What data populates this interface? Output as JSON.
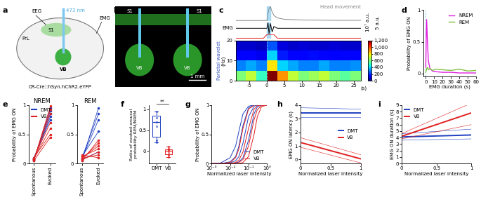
{
  "panel_labels": [
    "a",
    "b",
    "c",
    "d",
    "e",
    "f",
    "g",
    "h",
    "i"
  ],
  "schematic": {
    "prl": "PrL",
    "s1": "S1",
    "eeg": "EEG",
    "emg": "EMG",
    "laser": "473 nm",
    "vb": "VB",
    "construct": "CR-Cre::hSyn.hChR2.eYFP"
  },
  "histology": {
    "s1_left": "S1",
    "s1_right": "S1",
    "vb_left": "VB",
    "vb_right": "VB",
    "scale": "1 mm"
  },
  "chart_data": [
    {
      "type": "line",
      "stimulus": [
        0,
        1
      ],
      "xlim": [
        -9,
        27
      ],
      "scale_labels": [
        "10⁷ a.u.",
        "5 a.u."
      ],
      "x": [
        -9,
        -6,
        -3,
        -1,
        0,
        0.3,
        0.6,
        1,
        1.5,
        2,
        3,
        5,
        10,
        15,
        20,
        25,
        27
      ],
      "series": [
        {
          "name": "Head movement",
          "color": "#888888",
          "values": [
            0.05,
            0.05,
            0.06,
            0.05,
            0.1,
            2,
            3.5,
            4,
            2.5,
            1.5,
            0.8,
            0.4,
            0.2,
            0.15,
            0.1,
            0.1,
            0.1
          ]
        },
        {
          "name": "EMG",
          "color": "#000000",
          "values": [
            0,
            0,
            0,
            0,
            0,
            3,
            -3,
            2.5,
            -2,
            1,
            0,
            0,
            0,
            0,
            0,
            0,
            0
          ]
        },
        {
          "color": "#e02020",
          "values": [
            0,
            0,
            0,
            0,
            1,
            1,
            1,
            1,
            1,
            1,
            0,
            0,
            0,
            0,
            0,
            0,
            0
          ]
        }
      ]
    },
    {
      "type": "heatmap",
      "side_label": "Parietal wavelet",
      "ylabel": "(Hz)",
      "xlabel": "(s)",
      "x_edges": [
        -9,
        -6,
        -3,
        0,
        3,
        6,
        9,
        12,
        15,
        18,
        21,
        24,
        27
      ],
      "y_edges": [
        0,
        5,
        10,
        15,
        20
      ],
      "cells": [
        [
          600,
          700,
          500,
          1200,
          900,
          700,
          600,
          650,
          700,
          600,
          550,
          600
        ],
        [
          300,
          350,
          300,
          800,
          400,
          350,
          300,
          300,
          350,
          300,
          300,
          320
        ],
        [
          150,
          150,
          120,
          400,
          180,
          150,
          150,
          160,
          150,
          140,
          150,
          150
        ],
        [
          80,
          80,
          70,
          250,
          100,
          80,
          90,
          80,
          80,
          90,
          80,
          80
        ]
      ],
      "xlim": [
        -9,
        27
      ],
      "ylim": [
        0,
        20
      ],
      "xticks": [
        -5,
        0,
        5,
        10,
        15,
        20,
        25
      ],
      "yticks": [
        0,
        10,
        20
      ],
      "colorbar": {
        "range": [
          0,
          1200
        ],
        "ticks": [
          0,
          200,
          400,
          600,
          800,
          {
            "value": 1000,
            "label": "1,000"
          },
          {
            "value": 1200,
            "label": "1,200"
          }
        ]
      }
    },
    {
      "type": "line",
      "xlabel": "EMG duration (s)",
      "ylabel": "Probability of EMG ON",
      "x": [
        0,
        0.5,
        1,
        2,
        3,
        5,
        8,
        12,
        20,
        30,
        40,
        50,
        60
      ],
      "series": [
        {
          "name": "NREM",
          "color": "#e020e0",
          "values": [
            0.1,
            0.6,
            0.85,
            0.5,
            0.2,
            0.08,
            0.04,
            0.03,
            0.02,
            0.02,
            0.01,
            0.01,
            0.01
          ]
        },
        {
          "name": "REM",
          "color": "#80c040",
          "values": [
            0.02,
            0.05,
            0.08,
            0.1,
            0.06,
            0.08,
            0.05,
            0.07,
            0.06,
            0.05,
            0.07,
            0.04,
            0.05
          ]
        }
      ],
      "xlim": [
        -3,
        60
      ],
      "xticks": [
        0,
        10,
        20,
        30,
        40,
        50,
        60
      ],
      "ylim": [
        -0.05,
        1
      ],
      "yticks": [
        0,
        0.5,
        1
      ],
      "legend": "upper right"
    },
    {
      "type": "line",
      "title": "NREM",
      "ylabel": "Probability of EMG ON",
      "categories": [
        "Spontanous",
        "Evoked"
      ],
      "marker": "o",
      "series": [
        {
          "name": "DMT",
          "color": "#2040c0",
          "values": [
            [
              0.05,
              0.95
            ],
            [
              0.06,
              0.9
            ],
            [
              0.08,
              0.85
            ],
            [
              0.07,
              0.8
            ],
            [
              0.1,
              0.75
            ]
          ]
        },
        {
          "name": "VB",
          "color": "#e02020",
          "values": [
            [
              0.05,
              0.98
            ],
            [
              0.07,
              0.92
            ],
            [
              0.06,
              0.85
            ],
            [
              0.09,
              0.7
            ],
            [
              0.08,
              0.6
            ],
            [
              0.1,
              0.5
            ],
            [
              0.05,
              0.45
            ]
          ]
        }
      ],
      "ylim": [
        0,
        1
      ],
      "yticks": [
        0,
        0.5,
        1
      ],
      "legend": "upper left"
    },
    {
      "type": "line",
      "title": "REM",
      "categories": [
        "Spontanous",
        "Evoked"
      ],
      "marker": "o",
      "series": [
        {
          "color": "#2040c0",
          "values": [
            [
              0.05,
              0.95
            ],
            [
              0.1,
              0.85
            ],
            [
              0.08,
              0.75
            ],
            [
              0.12,
              0.55
            ],
            [
              0.07,
              0.2
            ]
          ]
        },
        {
          "color": "#e02020",
          "values": [
            [
              0.05,
              0.4
            ],
            [
              0.08,
              0.35
            ],
            [
              0.1,
              0.3
            ],
            [
              0.12,
              0.25
            ],
            [
              0.06,
              0.2
            ],
            [
              0.09,
              0.15
            ],
            [
              0.15,
              0.1
            ]
          ]
        }
      ],
      "ylim": [
        0,
        1
      ],
      "yticks": [
        0,
        0.5,
        1
      ]
    },
    {
      "type": "box",
      "ylabel": "Ratio of evoked-arousal probability REM/NREM",
      "categories": [
        "DMT",
        "VB"
      ],
      "colors": [
        "#2040c0",
        "#e02020"
      ],
      "boxes": [
        {
          "whislo": 0.2,
          "q1": 0.35,
          "med": 0.7,
          "q3": 0.85,
          "whishi": 0.95
        },
        {
          "whislo": -0.15,
          "q1": -0.07,
          "med": 0,
          "q3": 0.04,
          "whishi": 0.1
        }
      ],
      "points": [
        [
          0.2,
          0.25,
          0.6,
          0.7,
          0.8,
          0.95
        ],
        [
          -0.15,
          -0.1,
          -0.05,
          0,
          0.02,
          0.05,
          0.1
        ]
      ],
      "annotation": "**",
      "ylim": [
        -0.3,
        1.1
      ],
      "yticks": [
        0,
        0.5,
        1
      ]
    },
    {
      "type": "line",
      "log": "x",
      "xlabel": "Normalized laser intensity",
      "ylabel": "Probability of EMG ON",
      "x": [
        0.001,
        0.003,
        0.01,
        0.02,
        0.03,
        0.05,
        0.1,
        0.2,
        0.3,
        0.5,
        1
      ],
      "series": [
        {
          "name": "DMT",
          "color": "#2040c0",
          "curves": [
            [
              0,
              0.01,
              0.1,
              0.3,
              0.55,
              0.85,
              0.98,
              1,
              1,
              1,
              1
            ],
            [
              0,
              0,
              0.03,
              0.12,
              0.3,
              0.65,
              0.95,
              1,
              1,
              1,
              1
            ],
            [
              0,
              0,
              0.01,
              0.05,
              0.12,
              0.35,
              0.8,
              0.98,
              1,
              1,
              1
            ],
            [
              0,
              0,
              0,
              0.01,
              0.03,
              0.1,
              0.4,
              0.85,
              0.97,
              1,
              1
            ]
          ]
        },
        {
          "name": "VB",
          "color": "#e02020",
          "curves": [
            [
              0,
              0,
              0.02,
              0.1,
              0.25,
              0.6,
              0.93,
              1,
              1,
              1,
              1
            ],
            [
              0,
              0,
              0,
              0.02,
              0.06,
              0.2,
              0.6,
              0.93,
              0.99,
              1,
              1
            ],
            [
              0,
              0,
              0,
              0,
              0.02,
              0.07,
              0.3,
              0.75,
              0.92,
              0.99,
              1
            ],
            [
              0,
              0,
              0,
              0,
              0,
              0.02,
              0.12,
              0.5,
              0.8,
              0.97,
              1
            ]
          ]
        }
      ],
      "xlim": [
        0.001,
        1
      ],
      "xticks": [
        {
          "value": 0.001,
          "label": "10⁻³"
        },
        {
          "value": 0.01,
          "label": "10⁻²"
        },
        {
          "value": 0.1,
          "label": "10⁻¹"
        },
        {
          "value": 1,
          "label": "10⁰"
        }
      ],
      "ylim": [
        0,
        1
      ],
      "yticks": [
        0,
        0.5,
        1
      ],
      "legend": "lower right"
    },
    {
      "type": "line",
      "xlabel": "Normalized laser intensity",
      "ylabel": "EMG ON latency (s)",
      "x": [
        0,
        1
      ],
      "series": [
        {
          "name": "DMT",
          "color": "#2040c0",
          "values": [
            3.4,
            3.4
          ],
          "ci_low": [
            3.1,
            3.1
          ],
          "ci_high": [
            3.8,
            3.7
          ]
        },
        {
          "name": "VB",
          "color": "#e02020",
          "values": [
            1.25,
            0.05
          ],
          "ci_low": [
            0.9,
            -0.25
          ],
          "ci_high": [
            1.6,
            0.35
          ]
        }
      ],
      "xlim": [
        0,
        1
      ],
      "xticks": [
        0,
        0.5,
        1
      ],
      "ylim": [
        -0.3,
        4
      ],
      "yticks": [
        0,
        1,
        2,
        3,
        4
      ],
      "legend": "center right"
    },
    {
      "type": "line",
      "xlabel": "Normalized laser intensity",
      "ylabel": "EMG ON duration (s)",
      "x": [
        0,
        1
      ],
      "series": [
        {
          "name": "DMT",
          "color": "#2040c0",
          "values": [
            4.1,
            4.4
          ],
          "ci_low": [
            3.6,
            3.8
          ],
          "ci_high": [
            4.6,
            5.3
          ]
        },
        {
          "name": "VB",
          "color": "#e02020",
          "values": [
            4.2,
            7.8
          ],
          "ci_low": [
            3.8,
            6.0
          ],
          "ci_high": [
            4.6,
            9.3
          ]
        }
      ],
      "xlim": [
        0,
        1
      ],
      "xticks": [
        0,
        0.5,
        1
      ],
      "ylim": [
        0,
        9
      ],
      "yticks": [
        0,
        1,
        2,
        3,
        4,
        5,
        6,
        7,
        8,
        9
      ],
      "legend": "upper left"
    }
  ]
}
